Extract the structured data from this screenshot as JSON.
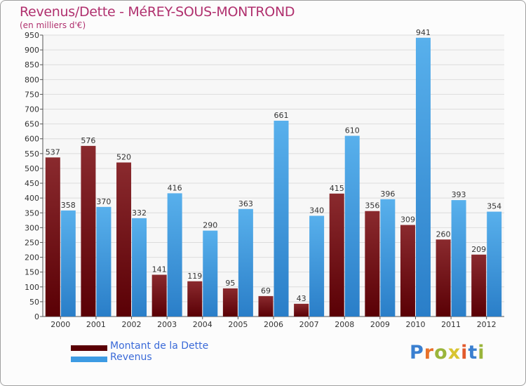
{
  "chart_data": {
    "type": "bar",
    "title": "Revenus/Dette - MéREY-SOUS-MONTROND",
    "subtitle": "(en milliers d'€)",
    "categories": [
      "2000",
      "2001",
      "2002",
      "2003",
      "2004",
      "2005",
      "2006",
      "2007",
      "2008",
      "2009",
      "2010",
      "2011",
      "2012"
    ],
    "series": [
      {
        "name": "Montant de la Dette",
        "color": "#7a1518",
        "values": [
          537,
          576,
          520,
          141,
          119,
          95,
          69,
          43,
          415,
          356,
          309,
          260,
          209
        ]
      },
      {
        "name": "Revenus",
        "color": "#3d9be3",
        "values": [
          358,
          370,
          332,
          416,
          290,
          363,
          661,
          340,
          610,
          396,
          941,
          393,
          354
        ]
      }
    ],
    "ylim": [
      0,
      950
    ],
    "ytick_step": 50,
    "xlabel": "",
    "ylabel": "",
    "grid": true,
    "legend": "bottom-left"
  },
  "logo": {
    "text": "Proxiti"
  }
}
